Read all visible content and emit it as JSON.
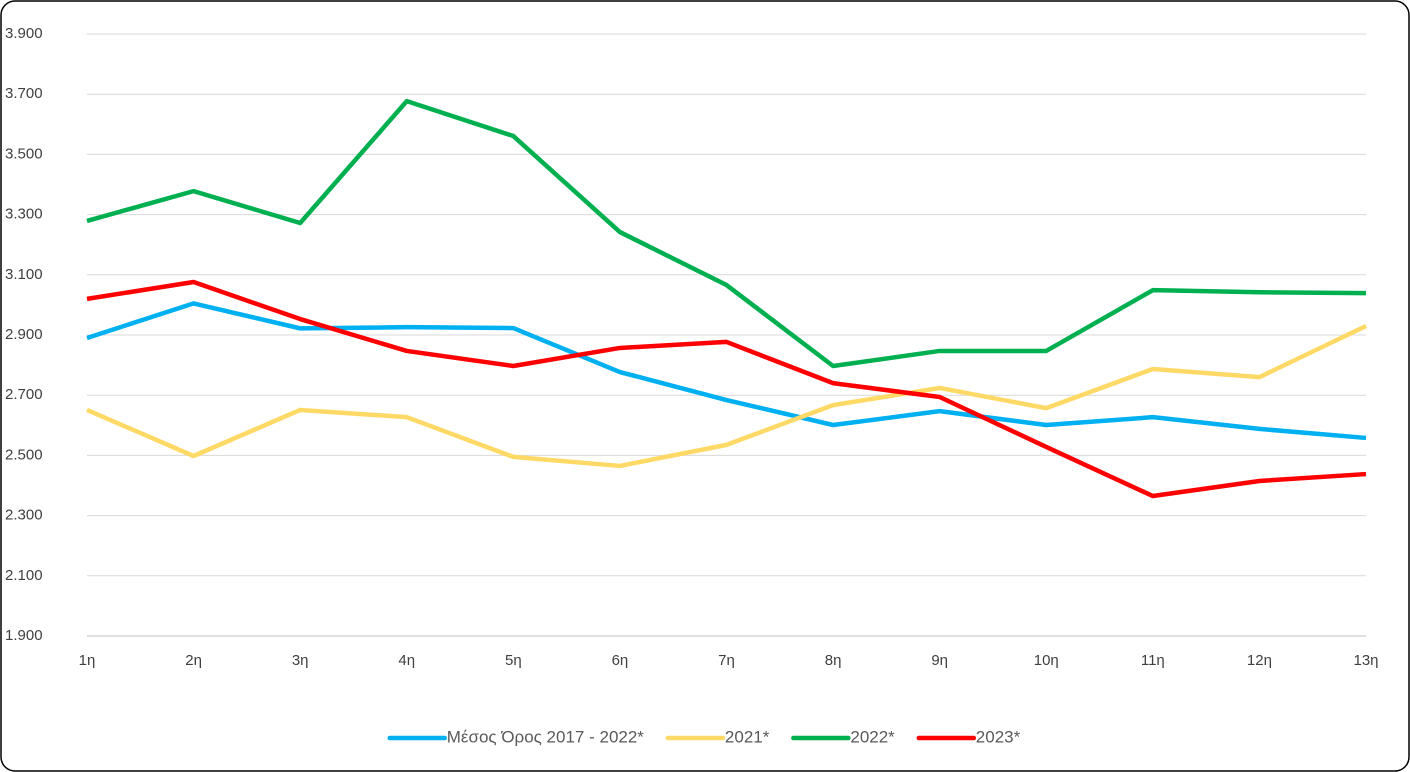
{
  "chart_data": {
    "type": "line",
    "categories": [
      "1η",
      "2η",
      "3η",
      "4η",
      "5η",
      "6η",
      "7η",
      "8η",
      "9η",
      "10η",
      "11η",
      "12η",
      "13η"
    ],
    "series": [
      {
        "name": "Μέσος Όρος 2017 - 2022*",
        "color": "#00b0f0",
        "values": [
          2890,
          3005,
          2922,
          2926,
          2923,
          2777,
          2684,
          2601,
          2647,
          2601,
          2627,
          2588,
          2558
        ]
      },
      {
        "name": "2021*",
        "color": "#ffd966",
        "values": [
          2651,
          2498,
          2651,
          2627,
          2495,
          2465,
          2535,
          2667,
          2724,
          2657,
          2787,
          2760,
          2930
        ]
      },
      {
        "name": "2022*",
        "color": "#00b050",
        "values": [
          3279,
          3378,
          3272,
          3677,
          3561,
          3242,
          3066,
          2797,
          2847,
          2847,
          3049,
          3042,
          3039
        ]
      },
      {
        "name": "2023*",
        "color": "#ff0000",
        "values": [
          3020,
          3076,
          2953,
          2847,
          2797,
          2857,
          2877,
          2740,
          2694,
          2528,
          2365,
          2415,
          2438
        ]
      }
    ],
    "ylim": [
      1900,
      3900
    ],
    "yticks": [
      {
        "value": 1900,
        "label": "1.900"
      },
      {
        "value": 2100,
        "label": "2.100"
      },
      {
        "value": 2300,
        "label": "2.300"
      },
      {
        "value": 2500,
        "label": "2.500"
      },
      {
        "value": 2700,
        "label": "2.700"
      },
      {
        "value": 2900,
        "label": "2.900"
      },
      {
        "value": 3100,
        "label": "3.100"
      },
      {
        "value": 3300,
        "label": "3.300"
      },
      {
        "value": 3500,
        "label": "3.500"
      },
      {
        "value": 3700,
        "label": "3.700"
      },
      {
        "value": 3900,
        "label": "3.900"
      }
    ],
    "grid": true,
    "legend": "bottom"
  }
}
